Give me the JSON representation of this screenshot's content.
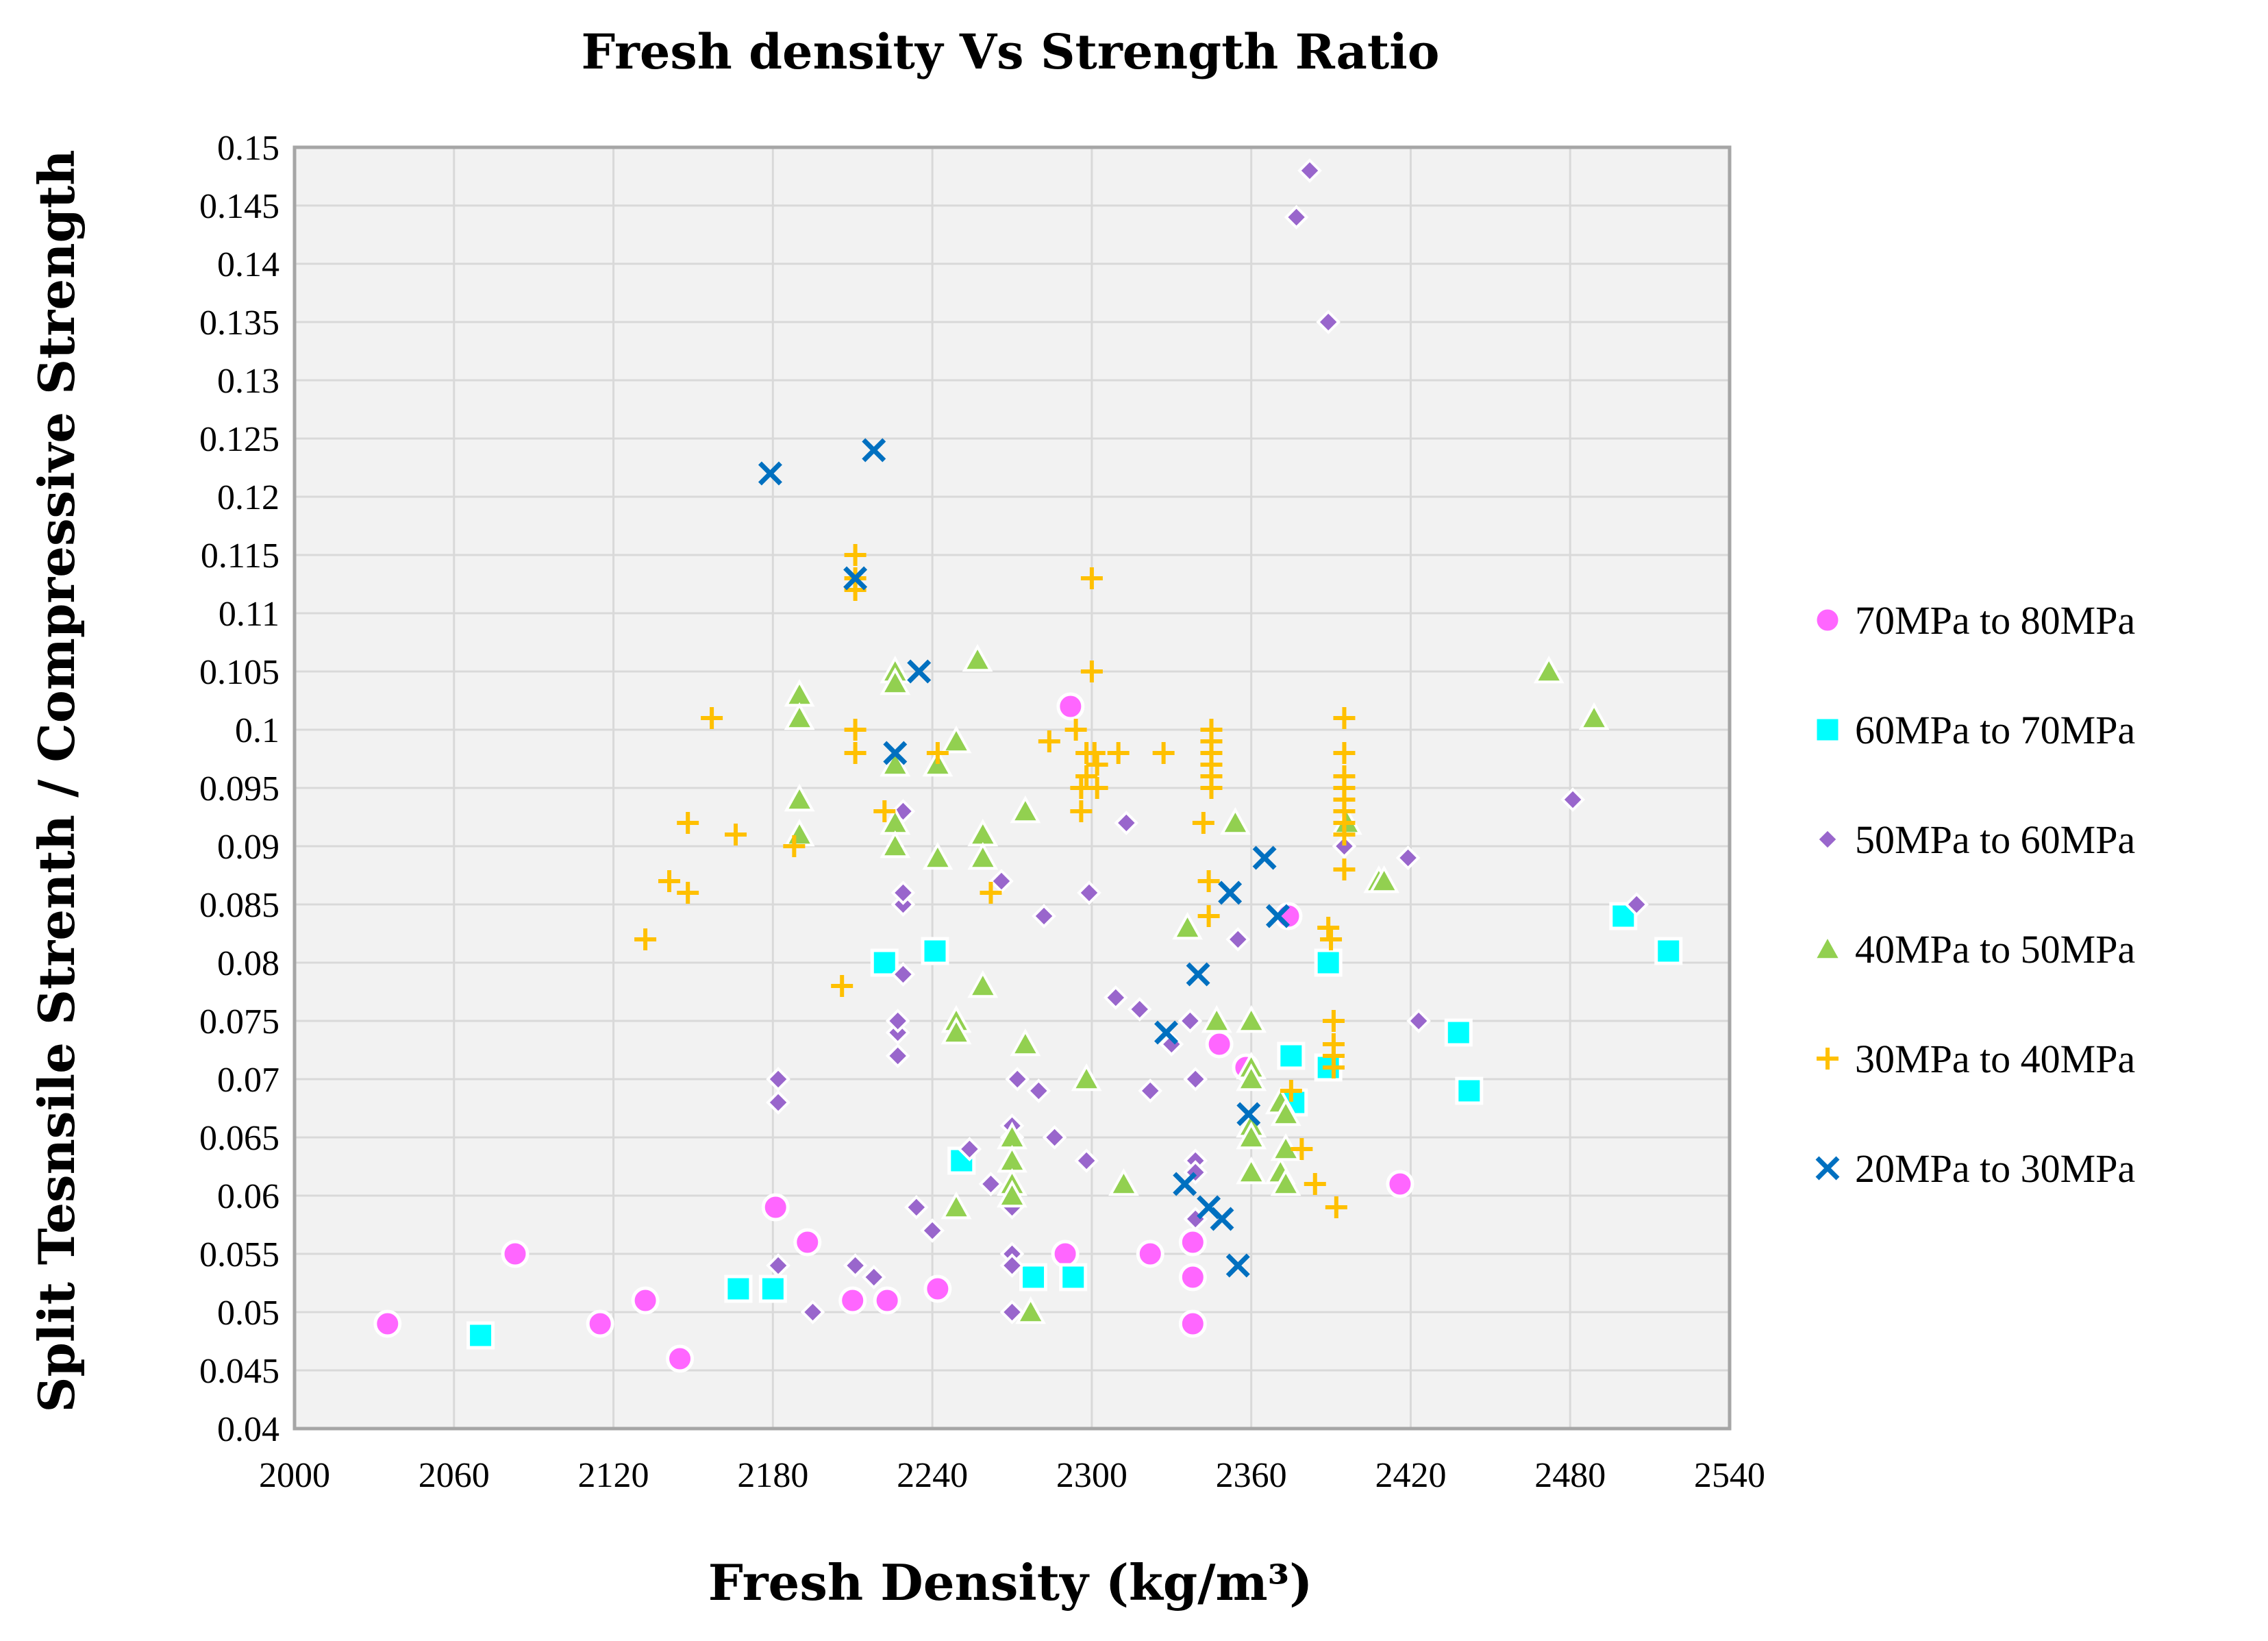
{
  "chart_data": {
    "type": "scatter",
    "title": "Fresh density Vs Strength Ratio",
    "xlabel": "Fresh Density (kg/m³)",
    "ylabel": "Split Tesnsile Strenth / Compressive Strength",
    "xlim": [
      2000,
      2540
    ],
    "ylim": [
      0.04,
      0.15
    ],
    "x_ticks": [
      "2000",
      "2060",
      "2120",
      "2180",
      "2240",
      "2300",
      "2360",
      "2420",
      "2480",
      "2540"
    ],
    "y_ticks": [
      "0.04",
      "0.045",
      "0.05",
      "0.055",
      "0.06",
      "0.065",
      "0.07",
      "0.075",
      "0.08",
      "0.085",
      "0.09",
      "0.095",
      "0.1",
      "0.105",
      "0.11",
      "0.115",
      "0.12",
      "0.125",
      "0.13",
      "0.135",
      "0.14",
      "0.145",
      "0.15"
    ],
    "grid": true,
    "legend_position": "right",
    "series": [
      {
        "name": "70MPa to 80MPa",
        "marker": "circle",
        "color": "#FF66FF",
        "points": [
          [
            2035,
            0.049
          ],
          [
            2083,
            0.055
          ],
          [
            2115,
            0.049
          ],
          [
            2132,
            0.051
          ],
          [
            2145,
            0.046
          ],
          [
            2181,
            0.059
          ],
          [
            2193,
            0.056
          ],
          [
            2210,
            0.051
          ],
          [
            2223,
            0.051
          ],
          [
            2242,
            0.052
          ],
          [
            2290,
            0.055
          ],
          [
            2292,
            0.102
          ],
          [
            2322,
            0.055
          ],
          [
            2338,
            0.056
          ],
          [
            2338,
            0.053
          ],
          [
            2338,
            0.049
          ],
          [
            2348,
            0.073
          ],
          [
            2358,
            0.071
          ],
          [
            2374,
            0.084
          ],
          [
            2416,
            0.061
          ]
        ]
      },
      {
        "name": "60MPa to 70MPa",
        "marker": "square",
        "color": "#00FFFF",
        "points": [
          [
            2070,
            0.048
          ],
          [
            2167,
            0.052
          ],
          [
            2180,
            0.052
          ],
          [
            2222,
            0.08
          ],
          [
            2241,
            0.081
          ],
          [
            2251,
            0.063
          ],
          [
            2278,
            0.053
          ],
          [
            2293,
            0.053
          ],
          [
            2375,
            0.072
          ],
          [
            2376,
            0.068
          ],
          [
            2389,
            0.071
          ],
          [
            2389,
            0.08
          ],
          [
            2438,
            0.074
          ],
          [
            2442,
            0.069
          ],
          [
            2500,
            0.084
          ],
          [
            2517,
            0.081
          ]
        ]
      },
      {
        "name": "50MPa to 60MPa",
        "marker": "diamond",
        "color": "#9966CC",
        "points": [
          [
            2182,
            0.07
          ],
          [
            2182,
            0.068
          ],
          [
            2182,
            0.054
          ],
          [
            2195,
            0.05
          ],
          [
            2211,
            0.054
          ],
          [
            2218,
            0.053
          ],
          [
            2227,
            0.072
          ],
          [
            2227,
            0.074
          ],
          [
            2227,
            0.075
          ],
          [
            2229,
            0.079
          ],
          [
            2229,
            0.085
          ],
          [
            2229,
            0.086
          ],
          [
            2229,
            0.093
          ],
          [
            2234,
            0.059
          ],
          [
            2240,
            0.057
          ],
          [
            2254,
            0.064
          ],
          [
            2262,
            0.061
          ],
          [
            2266,
            0.087
          ],
          [
            2270,
            0.066
          ],
          [
            2270,
            0.065
          ],
          [
            2270,
            0.059
          ],
          [
            2270,
            0.055
          ],
          [
            2270,
            0.054
          ],
          [
            2270,
            0.05
          ],
          [
            2272,
            0.07
          ],
          [
            2280,
            0.069
          ],
          [
            2282,
            0.084
          ],
          [
            2286,
            0.065
          ],
          [
            2298,
            0.063
          ],
          [
            2299,
            0.086
          ],
          [
            2309,
            0.077
          ],
          [
            2313,
            0.092
          ],
          [
            2318,
            0.076
          ],
          [
            2322,
            0.069
          ],
          [
            2330,
            0.073
          ],
          [
            2337,
            0.075
          ],
          [
            2339,
            0.07
          ],
          [
            2339,
            0.063
          ],
          [
            2339,
            0.062
          ],
          [
            2339,
            0.058
          ],
          [
            2355,
            0.082
          ],
          [
            2377,
            0.144
          ],
          [
            2382,
            0.148
          ],
          [
            2389,
            0.135
          ],
          [
            2395,
            0.09
          ],
          [
            2419,
            0.089
          ],
          [
            2423,
            0.075
          ],
          [
            2481,
            0.094
          ],
          [
            2505,
            0.085
          ]
        ]
      },
      {
        "name": "40MPa to 50MPa",
        "marker": "triangle",
        "color": "#92D050",
        "points": [
          [
            2190,
            0.103
          ],
          [
            2190,
            0.101
          ],
          [
            2190,
            0.094
          ],
          [
            2190,
            0.091
          ],
          [
            2226,
            0.105
          ],
          [
            2226,
            0.104
          ],
          [
            2226,
            0.097
          ],
          [
            2226,
            0.092
          ],
          [
            2226,
            0.09
          ],
          [
            2242,
            0.097
          ],
          [
            2242,
            0.089
          ],
          [
            2249,
            0.099
          ],
          [
            2249,
            0.075
          ],
          [
            2249,
            0.074
          ],
          [
            2249,
            0.059
          ],
          [
            2257,
            0.106
          ],
          [
            2259,
            0.091
          ],
          [
            2259,
            0.089
          ],
          [
            2259,
            0.078
          ],
          [
            2270,
            0.065
          ],
          [
            2270,
            0.063
          ],
          [
            2270,
            0.061
          ],
          [
            2270,
            0.06
          ],
          [
            2275,
            0.093
          ],
          [
            2275,
            0.073
          ],
          [
            2277,
            0.05
          ],
          [
            2298,
            0.07
          ],
          [
            2312,
            0.061
          ],
          [
            2336,
            0.083
          ],
          [
            2347,
            0.075
          ],
          [
            2354,
            0.092
          ],
          [
            2360,
            0.075
          ],
          [
            2360,
            0.071
          ],
          [
            2360,
            0.07
          ],
          [
            2360,
            0.066
          ],
          [
            2360,
            0.065
          ],
          [
            2360,
            0.062
          ],
          [
            2371,
            0.062
          ],
          [
            2371,
            0.068
          ],
          [
            2373,
            0.064
          ],
          [
            2373,
            0.067
          ],
          [
            2373,
            0.061
          ],
          [
            2396,
            0.092
          ],
          [
            2408,
            0.087
          ],
          [
            2410,
            0.087
          ],
          [
            2472,
            0.105
          ],
          [
            2489,
            0.101
          ]
        ]
      },
      {
        "name": "30MPa to 40MPa",
        "marker": "plus",
        "color": "#FFC000",
        "points": [
          [
            2132,
            0.082
          ],
          [
            2141,
            0.087
          ],
          [
            2148,
            0.092
          ],
          [
            2148,
            0.086
          ],
          [
            2157,
            0.101
          ],
          [
            2166,
            0.091
          ],
          [
            2188,
            0.09
          ],
          [
            2206,
            0.078
          ],
          [
            2211,
            0.115
          ],
          [
            2211,
            0.113
          ],
          [
            2211,
            0.112
          ],
          [
            2211,
            0.1
          ],
          [
            2211,
            0.098
          ],
          [
            2222,
            0.093
          ],
          [
            2242,
            0.098
          ],
          [
            2262,
            0.086
          ],
          [
            2284,
            0.099
          ],
          [
            2294,
            0.1
          ],
          [
            2296,
            0.095
          ],
          [
            2296,
            0.093
          ],
          [
            2298,
            0.098
          ],
          [
            2298,
            0.096
          ],
          [
            2300,
            0.113
          ],
          [
            2300,
            0.105
          ],
          [
            2301,
            0.098
          ],
          [
            2302,
            0.095
          ],
          [
            2302,
            0.097
          ],
          [
            2310,
            0.098
          ],
          [
            2327,
            0.098
          ],
          [
            2342,
            0.092
          ],
          [
            2344,
            0.087
          ],
          [
            2344,
            0.084
          ],
          [
            2345,
            0.1
          ],
          [
            2345,
            0.099
          ],
          [
            2345,
            0.098
          ],
          [
            2345,
            0.097
          ],
          [
            2345,
            0.096
          ],
          [
            2345,
            0.095
          ],
          [
            2375,
            0.069
          ],
          [
            2379,
            0.064
          ],
          [
            2384,
            0.061
          ],
          [
            2389,
            0.083
          ],
          [
            2390,
            0.082
          ],
          [
            2391,
            0.075
          ],
          [
            2391,
            0.073
          ],
          [
            2391,
            0.072
          ],
          [
            2391,
            0.071
          ],
          [
            2392,
            0.059
          ],
          [
            2395,
            0.101
          ],
          [
            2395,
            0.098
          ],
          [
            2395,
            0.096
          ],
          [
            2395,
            0.095
          ],
          [
            2395,
            0.094
          ],
          [
            2395,
            0.093
          ],
          [
            2395,
            0.092
          ],
          [
            2395,
            0.091
          ],
          [
            2395,
            0.088
          ]
        ]
      },
      {
        "name": "20MPa to 30MPa",
        "marker": "x",
        "color": "#0070C0",
        "points": [
          [
            2179,
            0.122
          ],
          [
            2211,
            0.113
          ],
          [
            2218,
            0.124
          ],
          [
            2226,
            0.098
          ],
          [
            2235,
            0.105
          ],
          [
            2328,
            0.074
          ],
          [
            2335,
            0.061
          ],
          [
            2340,
            0.079
          ],
          [
            2344,
            0.059
          ],
          [
            2349,
            0.058
          ],
          [
            2352,
            0.086
          ],
          [
            2355,
            0.054
          ],
          [
            2359,
            0.067
          ],
          [
            2365,
            0.089
          ],
          [
            2370,
            0.084
          ]
        ]
      }
    ]
  }
}
